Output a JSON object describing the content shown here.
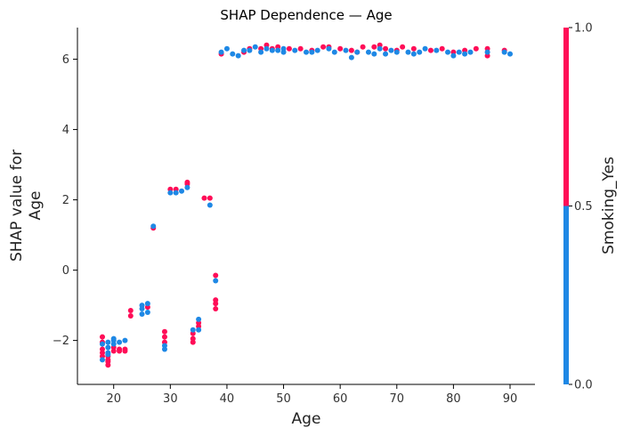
{
  "chart_data": {
    "type": "scatter",
    "title": "SHAP Dependence — Age",
    "xlabel": "Age",
    "ylabel": "SHAP value for\nAge",
    "xlim": [
      13.6,
      94.4
    ],
    "ylim": [
      -3.25,
      6.9
    ],
    "xticks": [
      "20",
      "30",
      "40",
      "50",
      "60",
      "70",
      "80",
      "90"
    ],
    "yticks": [
      "−2",
      "0",
      "2",
      "4",
      "6"
    ],
    "color_feature": "Smoking_Yes",
    "colorbar_ticks": [
      "0.0",
      "0.5",
      "1.0"
    ],
    "colors": {
      "no": "#1e88e5",
      "yes": "#ff0d57"
    },
    "series": [
      {
        "points": [
          [
            18,
            -2.45
          ],
          [
            18,
            -2.35
          ],
          [
            18,
            -2.05
          ],
          [
            18,
            -1.9
          ],
          [
            18,
            -2.25
          ],
          [
            19,
            -2.7
          ],
          [
            19,
            -2.55
          ],
          [
            19,
            -2.45
          ],
          [
            19,
            -2.6
          ],
          [
            20,
            -2.3
          ],
          [
            20,
            -2.2
          ],
          [
            21,
            -2.3
          ],
          [
            21,
            -2.25
          ],
          [
            22,
            -2.3
          ],
          [
            22,
            -2.25
          ],
          [
            23,
            -1.3
          ],
          [
            23,
            -1.15
          ],
          [
            26,
            -1.05
          ],
          [
            27,
            1.2
          ],
          [
            29,
            -1.75
          ],
          [
            29,
            -1.9
          ],
          [
            29,
            -2.05
          ],
          [
            30,
            2.3
          ],
          [
            31,
            2.3
          ],
          [
            33,
            2.5
          ],
          [
            33,
            2.45
          ],
          [
            34,
            -2.05
          ],
          [
            34,
            -1.95
          ],
          [
            34,
            -1.8
          ],
          [
            35,
            -1.6
          ],
          [
            35,
            -1.5
          ],
          [
            36,
            2.05
          ],
          [
            37,
            2.05
          ],
          [
            38,
            -1.1
          ],
          [
            38,
            -0.95
          ],
          [
            38,
            -0.85
          ],
          [
            38,
            -0.15
          ],
          [
            39,
            6.15
          ],
          [
            43,
            6.2
          ],
          [
            44,
            6.3
          ],
          [
            46,
            6.3
          ],
          [
            47,
            6.4
          ],
          [
            48,
            6.3
          ],
          [
            49,
            6.35
          ],
          [
            51,
            6.3
          ],
          [
            53,
            6.3
          ],
          [
            55,
            6.25
          ],
          [
            57,
            6.35
          ],
          [
            58,
            6.35
          ],
          [
            60,
            6.3
          ],
          [
            62,
            6.25
          ],
          [
            63,
            6.2
          ],
          [
            64,
            6.35
          ],
          [
            66,
            6.35
          ],
          [
            67,
            6.4
          ],
          [
            68,
            6.3
          ],
          [
            70,
            6.25
          ],
          [
            71,
            6.35
          ],
          [
            73,
            6.3
          ],
          [
            76,
            6.25
          ],
          [
            78,
            6.3
          ],
          [
            80,
            6.2
          ],
          [
            82,
            6.25
          ],
          [
            84,
            6.3
          ],
          [
            86,
            6.3
          ],
          [
            86,
            6.1
          ],
          [
            89,
            6.25
          ]
        ]
      },
      {
        "points": [
          [
            18,
            -2.55
          ],
          [
            18,
            -2.1
          ],
          [
            19,
            -2.4
          ],
          [
            19,
            -2.35
          ],
          [
            19,
            -2.2
          ],
          [
            19,
            -2.05
          ],
          [
            20,
            -2.1
          ],
          [
            20,
            -2.0
          ],
          [
            20,
            -1.95
          ],
          [
            21,
            -2.05
          ],
          [
            22,
            -2.0
          ],
          [
            25,
            -1.25
          ],
          [
            25,
            -1.1
          ],
          [
            25,
            -1.0
          ],
          [
            26,
            -1.2
          ],
          [
            26,
            -0.95
          ],
          [
            27,
            1.25
          ],
          [
            29,
            -2.25
          ],
          [
            29,
            -2.15
          ],
          [
            30,
            2.2
          ],
          [
            31,
            2.2
          ],
          [
            32,
            2.25
          ],
          [
            33,
            2.35
          ],
          [
            34,
            -1.7
          ],
          [
            35,
            -1.7
          ],
          [
            35,
            -1.4
          ],
          [
            37,
            1.85
          ],
          [
            38,
            -0.3
          ],
          [
            39,
            6.2
          ],
          [
            40,
            6.3
          ],
          [
            41,
            6.15
          ],
          [
            42,
            6.1
          ],
          [
            43,
            6.25
          ],
          [
            44,
            6.25
          ],
          [
            45,
            6.35
          ],
          [
            46,
            6.2
          ],
          [
            47,
            6.3
          ],
          [
            48,
            6.25
          ],
          [
            49,
            6.25
          ],
          [
            50,
            6.3
          ],
          [
            50,
            6.2
          ],
          [
            52,
            6.25
          ],
          [
            54,
            6.2
          ],
          [
            55,
            6.2
          ],
          [
            56,
            6.25
          ],
          [
            58,
            6.3
          ],
          [
            59,
            6.2
          ],
          [
            61,
            6.25
          ],
          [
            62,
            6.05
          ],
          [
            63,
            6.2
          ],
          [
            65,
            6.2
          ],
          [
            66,
            6.15
          ],
          [
            67,
            6.3
          ],
          [
            68,
            6.15
          ],
          [
            69,
            6.25
          ],
          [
            70,
            6.2
          ],
          [
            72,
            6.2
          ],
          [
            73,
            6.15
          ],
          [
            74,
            6.2
          ],
          [
            75,
            6.3
          ],
          [
            77,
            6.25
          ],
          [
            79,
            6.2
          ],
          [
            80,
            6.1
          ],
          [
            81,
            6.2
          ],
          [
            82,
            6.15
          ],
          [
            83,
            6.2
          ],
          [
            86,
            6.2
          ],
          [
            89,
            6.2
          ],
          [
            90,
            6.15
          ]
        ]
      }
    ]
  }
}
